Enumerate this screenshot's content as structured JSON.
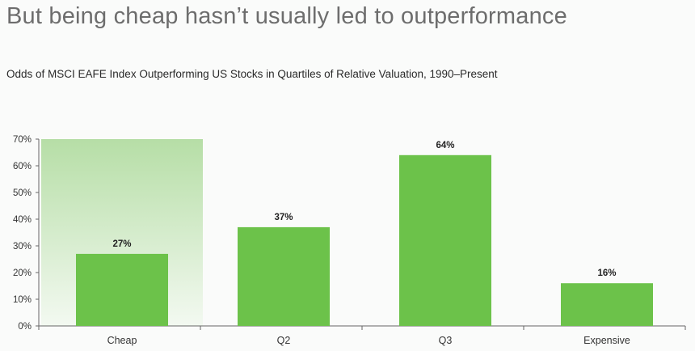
{
  "headline": "But being cheap hasn’t usually led to outperformance",
  "chart_data": {
    "type": "bar",
    "title": "Odds of MSCI EAFE Index Outperforming US Stocks in Quartiles of Relative Valuation, 1990–Present",
    "categories": [
      "Cheap",
      "Q2",
      "Q3",
      "Expensive"
    ],
    "values": [
      27,
      37,
      64,
      16
    ],
    "value_labels": [
      "27%",
      "37%",
      "64%",
      "16%"
    ],
    "yticks": [
      "0%",
      "10%",
      "20%",
      "30%",
      "40%",
      "50%",
      "60%",
      "70%"
    ],
    "ylim": [
      0,
      70
    ],
    "xlabel": "",
    "ylabel": "",
    "grid": false,
    "highlighted_category": "Cheap",
    "colors": {
      "bar": "#6cc24a",
      "highlight_top": "#b6dea6",
      "highlight_bottom": "#f3f9f1",
      "axis": "#666666"
    }
  }
}
